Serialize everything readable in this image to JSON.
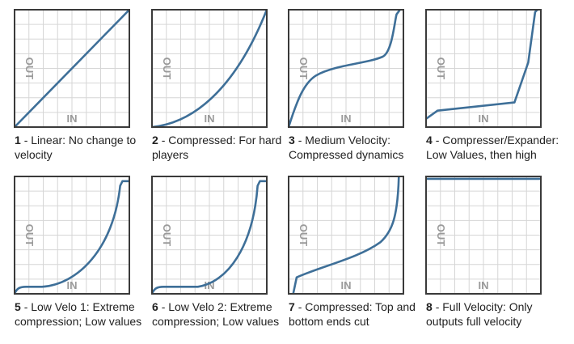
{
  "axis_labels": {
    "x": "IN",
    "y": "OUT"
  },
  "panels": [
    {
      "number": "1",
      "lines": [
        "- Linear: No change to",
        "velocity"
      ]
    },
    {
      "number": "2",
      "lines": [
        "- Compressed: For hard",
        "players"
      ]
    },
    {
      "number": "3",
      "lines": [
        "- Medium Velocity:",
        "Compressed dynamics"
      ]
    },
    {
      "number": "4",
      "lines": [
        "- Compresser/Expander:",
        "Low Values, then high"
      ]
    },
    {
      "number": "5",
      "lines": [
        "- Low Velo 1: Extreme",
        "compression; Low values"
      ]
    },
    {
      "number": "6",
      "lines": [
        "- Low Velo 2: Extreme",
        "compression; Low values"
      ]
    },
    {
      "number": "7",
      "lines": [
        "- Compressed: Top and",
        "bottom ends cut"
      ]
    },
    {
      "number": "8",
      "lines": [
        "- Full Velocity: Only",
        "outputs full velocity"
      ]
    }
  ]
}
